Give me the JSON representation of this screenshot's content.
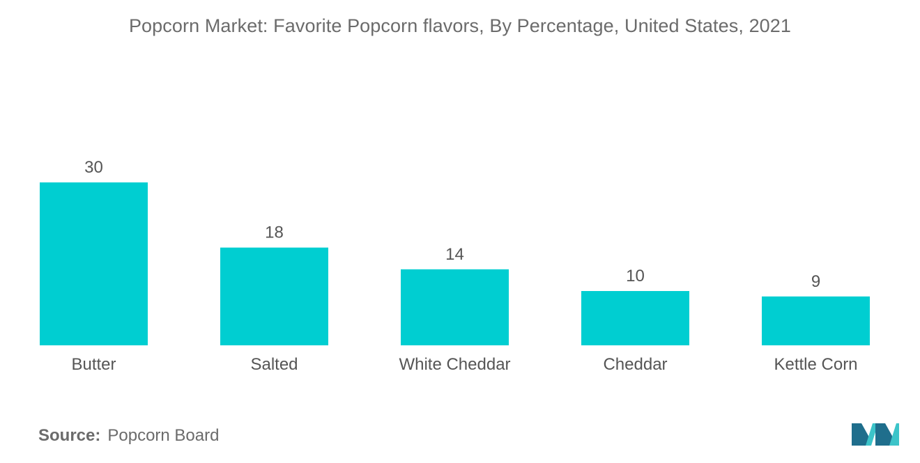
{
  "chart_data": {
    "type": "bar",
    "title": "Popcorn Market: Favorite Popcorn flavors, By Percentage, United States, 2021",
    "categories": [
      "Butter",
      "Salted",
      "White Cheddar",
      "Cheddar",
      "Kettle Corn"
    ],
    "values": [
      30,
      18,
      14,
      10,
      9
    ],
    "xlabel": "",
    "ylabel": "",
    "ylim": [
      0,
      30
    ],
    "grid": false,
    "legend": "none",
    "data_labels": true,
    "bar_color": "#00ced1"
  },
  "source": {
    "label": "Source:",
    "text": "Popcorn Board"
  },
  "colors": {
    "bar": "#00ced1",
    "text": "#6b6b6b",
    "logo_dark": "#1f6e8c",
    "logo_light": "#3cc4c9"
  }
}
